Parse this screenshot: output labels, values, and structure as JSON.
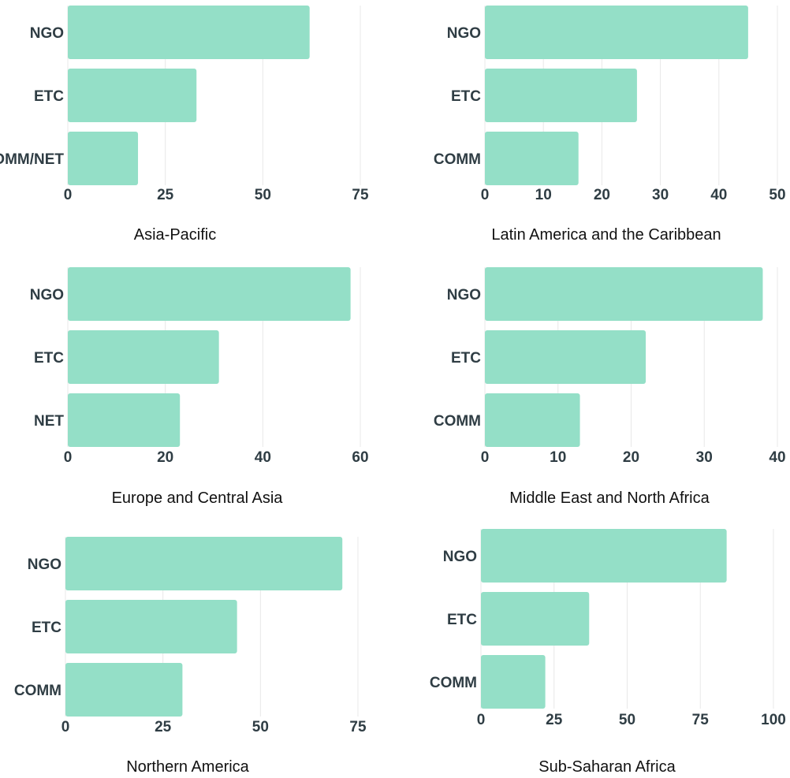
{
  "colors": {
    "bar": "#94dfc7",
    "grid": "#e8e8e8",
    "text": "#2f3d44"
  },
  "chart_data": [
    {
      "type": "bar",
      "orientation": "horizontal",
      "title": "Asia-Pacific",
      "categories": [
        "NGO",
        "ETC",
        "COMM/NET"
      ],
      "values": [
        62,
        33,
        18
      ],
      "xlim": [
        0,
        75
      ],
      "xticks": [
        "0",
        "25",
        "50",
        "75"
      ],
      "grid": true
    },
    {
      "type": "bar",
      "orientation": "horizontal",
      "title": "Latin America and the Caribbean",
      "categories": [
        "NGO",
        "ETC",
        "COMM"
      ],
      "values": [
        45,
        26,
        16
      ],
      "xlim": [
        0,
        50
      ],
      "xticks": [
        "0",
        "10",
        "20",
        "30",
        "40",
        "50"
      ],
      "grid": true
    },
    {
      "type": "bar",
      "orientation": "horizontal",
      "title": "Europe and Central Asia",
      "categories": [
        "NGO",
        "ETC",
        "NET"
      ],
      "values": [
        58,
        31,
        23
      ],
      "xlim": [
        0,
        60
      ],
      "xticks": [
        "0",
        "20",
        "40",
        "60"
      ],
      "grid": true
    },
    {
      "type": "bar",
      "orientation": "horizontal",
      "title": "Middle East and North Africa",
      "categories": [
        "NGO",
        "ETC",
        "COMM"
      ],
      "values": [
        38,
        22,
        13
      ],
      "xlim": [
        0,
        40
      ],
      "xticks": [
        "0",
        "10",
        "20",
        "30",
        "40"
      ],
      "grid": true
    },
    {
      "type": "bar",
      "orientation": "horizontal",
      "title": "Northern America",
      "categories": [
        "NGO",
        "ETC",
        "COMM"
      ],
      "values": [
        71,
        44,
        30
      ],
      "xlim": [
        0,
        75
      ],
      "xticks": [
        "0",
        "25",
        "50",
        "75"
      ],
      "grid": true
    },
    {
      "type": "bar",
      "orientation": "horizontal",
      "title": "Sub-Saharan Africa",
      "categories": [
        "NGO",
        "ETC",
        "COMM"
      ],
      "values": [
        84,
        37,
        22
      ],
      "xlim": [
        0,
        100
      ],
      "xticks": [
        "0",
        "25",
        "50",
        "75",
        "100"
      ],
      "grid": true
    }
  ]
}
